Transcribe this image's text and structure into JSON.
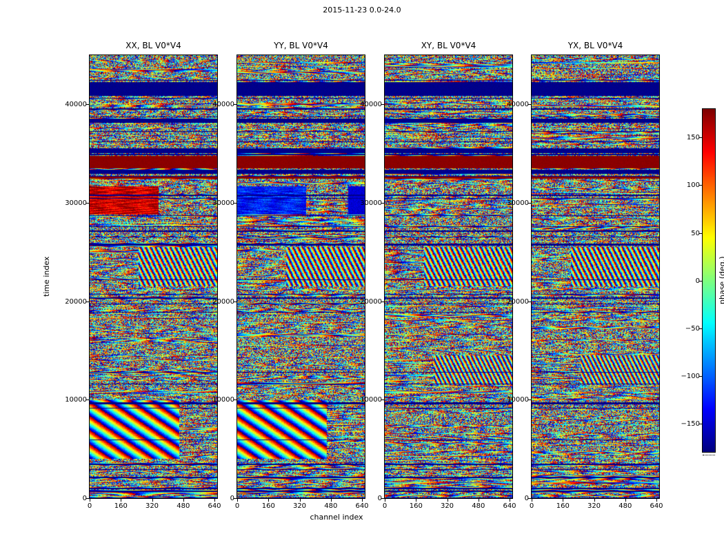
{
  "figure": {
    "background": "#ffffff",
    "text_color": "#000000",
    "frame_color": "#000000"
  },
  "chart_data": {
    "type": "heatmap",
    "title": "2015-11-23 0.0-24.0",
    "xlabel": "channel index",
    "ylabel": "time index",
    "x_ticks": [
      0,
      160,
      320,
      480,
      640
    ],
    "y_ticks": [
      0,
      10000,
      20000,
      30000,
      40000
    ],
    "x_range": [
      0,
      654
    ],
    "y_range": [
      0,
      45000
    ],
    "colorbar": {
      "label": "phase (deg.)",
      "ticks": [
        150,
        100,
        50,
        0,
        -50,
        -100,
        -150
      ],
      "range": [
        -180,
        180
      ],
      "colormap": "jet"
    },
    "bands": [
      {
        "t0": 40900,
        "t1": 42300,
        "phase": -176
      },
      {
        "t0": 38150,
        "t1": 38550,
        "phase": -176
      },
      {
        "t0": 35050,
        "t1": 35550,
        "phase": -176
      },
      {
        "t0": 33500,
        "t1": 34800,
        "phase": 176
      },
      {
        "t0": 32950,
        "t1": 33350,
        "phase": -176
      },
      {
        "t0": 32450,
        "t1": 32650,
        "phase": 176
      }
    ],
    "noise": {
      "row_seed": 12345,
      "thin_band_prob": 0.045,
      "bottom_region_t": 3600,
      "bottom_band_prob": 0.13,
      "fringe_row_prob": 0.3
    },
    "panels": [
      {
        "id": "xx",
        "title": "XX, BL V0*V4",
        "seed": 11,
        "patches": [
          {
            "kind": "flat",
            "t0": 28800,
            "t1": 31700,
            "c0": 0,
            "c1": 355,
            "phase": 152,
            "jitter": 42,
            "wave": true
          },
          {
            "kind": "diagonal",
            "t0": 4000,
            "t1": 9900,
            "c0": 0,
            "c1": 460,
            "dch": 3.3,
            "dt": 0.25,
            "jitter": 28
          },
          {
            "kind": "diagonal",
            "t0": 21500,
            "t1": 25500,
            "c0": 250,
            "c1": 654,
            "dch": 14,
            "dt": 0.35,
            "jitter": 85
          }
        ]
      },
      {
        "id": "yy",
        "title": "YY, BL V0*V4",
        "seed": 22,
        "patches": [
          {
            "kind": "flat",
            "t0": 28800,
            "t1": 31700,
            "c0": 0,
            "c1": 355,
            "phase": -128,
            "jitter": 40,
            "wave": true
          },
          {
            "kind": "flat",
            "t0": 28800,
            "t1": 31700,
            "c0": 569,
            "c1": 654,
            "phase": -150,
            "jitter": 25
          },
          {
            "kind": "diagonal",
            "t0": 4000,
            "t1": 9900,
            "c0": 0,
            "c1": 460,
            "dch": 3.3,
            "dt": 0.25,
            "jitter": 28
          },
          {
            "kind": "diagonal",
            "t0": 21500,
            "t1": 25500,
            "c0": 250,
            "c1": 654,
            "dch": 14,
            "dt": 0.35,
            "jitter": 85
          }
        ]
      },
      {
        "id": "xy",
        "title": "XY, BL V0*V4",
        "seed": 33,
        "patches": [
          {
            "kind": "diagonal",
            "t0": 21500,
            "t1": 25500,
            "c0": 200,
            "c1": 654,
            "dch": 14,
            "dt": 0.35,
            "jitter": 80
          },
          {
            "kind": "diagonal",
            "t0": 11500,
            "t1": 14500,
            "c0": 250,
            "c1": 654,
            "dch": 16,
            "dt": 0.4,
            "jitter": 85
          }
        ]
      },
      {
        "id": "yx",
        "title": "YX, BL V0*V4",
        "seed": 44,
        "patches": [
          {
            "kind": "diagonal",
            "t0": 21500,
            "t1": 25500,
            "c0": 200,
            "c1": 654,
            "dch": 14,
            "dt": 0.35,
            "jitter": 80
          },
          {
            "kind": "diagonal",
            "t0": 11500,
            "t1": 14500,
            "c0": 250,
            "c1": 654,
            "dch": 16,
            "dt": 0.4,
            "jitter": 85
          }
        ]
      }
    ]
  }
}
